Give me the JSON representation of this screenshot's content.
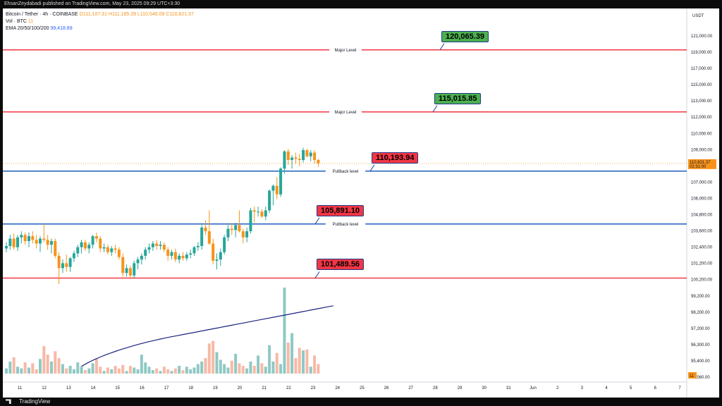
{
  "header": {
    "published": "EhsanZeydabadi published on TradingView.com, May 23, 2025 09:29 UTC+3:30"
  },
  "legend": {
    "symbol": "Bitcoin / Tether · 4h · COINBASE",
    "ohlc": "O111,107.31 H111,185.39 L110,546.09 C110,821.37",
    "vol_label": "Vol · BTC",
    "vol_value": "11",
    "ema_label": "EMA 20/50/100/200",
    "ema_value": "99,418.89"
  },
  "footer": {
    "brand": "TradingView"
  },
  "colors": {
    "bull": "#26a69a",
    "bear": "#f7931a",
    "bull_volume": "#8fc9c4",
    "bear_volume": "#f7b9a6",
    "major_level": "#f23645",
    "pullback_level": "#1e5fbf",
    "ema": "#1a237e"
  },
  "chart_data": {
    "type": "candlestick",
    "currency": "USDT",
    "ylim": [
      94400,
      122700
    ],
    "price_ticks": [
      "121,000.00",
      "119,000.00",
      "117,000.00",
      "115,000.00",
      "113,000.00",
      "112,000.00",
      "110,000.00",
      "109,000.00",
      "108,000.00",
      "107,000.00",
      "106,000.00",
      "104,800.00",
      "103,600.00",
      "102,400.00",
      "101,200.00",
      "100,200.00",
      "99,200.00",
      "98,200.00",
      "97,200.00",
      "96,300.00",
      "95,400.00",
      "94,560.00"
    ],
    "time_ticks": [
      "11",
      "12",
      "13",
      "14",
      "15",
      "16",
      "17",
      "18",
      "19",
      "20",
      "21",
      "22",
      "23",
      "24",
      "25",
      "26",
      "27",
      "28",
      "29",
      "30",
      "31",
      "Jun",
      "2",
      "3",
      "4",
      "5",
      "6",
      "7"
    ],
    "current_price_label": "110,821.37",
    "countdown_label": "02:31:00",
    "volume_label": "11",
    "levels": [
      {
        "price": 120065.39,
        "name": "Major Level",
        "type": "major",
        "callout": "120,065.39",
        "callout_color": "green"
      },
      {
        "price": 115015.85,
        "name": "Major Level",
        "type": "major",
        "callout": "115,015.85",
        "callout_color": "green"
      },
      {
        "price": 110193.94,
        "name": "Pullback level",
        "type": "pullback",
        "callout": "110,193.94",
        "callout_color": "red"
      },
      {
        "price": 105891.1,
        "name": "Pullback level",
        "type": "pullback",
        "callout": "105,891.10",
        "callout_color": "red"
      },
      {
        "price": 101489.56,
        "name": "",
        "type": "major",
        "callout": "101,489.56",
        "callout_color": "red"
      }
    ],
    "candles": [
      {
        "o": 103900,
        "h": 104400,
        "l": 103600,
        "c": 104100
      },
      {
        "o": 104100,
        "h": 105000,
        "l": 103800,
        "c": 104700
      },
      {
        "o": 104700,
        "h": 105100,
        "l": 103800,
        "c": 104000
      },
      {
        "o": 104000,
        "h": 105000,
        "l": 103700,
        "c": 104800
      },
      {
        "o": 104800,
        "h": 105300,
        "l": 104300,
        "c": 105000
      },
      {
        "o": 105000,
        "h": 105200,
        "l": 104200,
        "c": 104500
      },
      {
        "o": 104500,
        "h": 105200,
        "l": 104000,
        "c": 104900
      },
      {
        "o": 104900,
        "h": 105300,
        "l": 104300,
        "c": 104600
      },
      {
        "o": 104600,
        "h": 105000,
        "l": 103900,
        "c": 104300
      },
      {
        "o": 104300,
        "h": 104900,
        "l": 103600,
        "c": 104700
      },
      {
        "o": 104700,
        "h": 105900,
        "l": 104400,
        "c": 104600
      },
      {
        "o": 104600,
        "h": 105000,
        "l": 103800,
        "c": 104200
      },
      {
        "o": 104200,
        "h": 104700,
        "l": 103500,
        "c": 104500
      },
      {
        "o": 104500,
        "h": 104700,
        "l": 103100,
        "c": 103300
      },
      {
        "o": 103300,
        "h": 103600,
        "l": 101000,
        "c": 102300
      },
      {
        "o": 102300,
        "h": 103000,
        "l": 101900,
        "c": 102700
      },
      {
        "o": 102700,
        "h": 103400,
        "l": 102000,
        "c": 102400
      },
      {
        "o": 102400,
        "h": 103200,
        "l": 102000,
        "c": 103100
      },
      {
        "o": 103100,
        "h": 103700,
        "l": 102800,
        "c": 103500
      },
      {
        "o": 103500,
        "h": 104200,
        "l": 103200,
        "c": 104000
      },
      {
        "o": 104000,
        "h": 104600,
        "l": 103500,
        "c": 104400
      },
      {
        "o": 104400,
        "h": 104600,
        "l": 103700,
        "c": 103900
      },
      {
        "o": 103900,
        "h": 104400,
        "l": 103500,
        "c": 104200
      },
      {
        "o": 104200,
        "h": 105000,
        "l": 103900,
        "c": 104900
      },
      {
        "o": 104900,
        "h": 105200,
        "l": 104400,
        "c": 104700
      },
      {
        "o": 104700,
        "h": 104900,
        "l": 103600,
        "c": 103900
      },
      {
        "o": 103900,
        "h": 104300,
        "l": 103600,
        "c": 104000
      },
      {
        "o": 104000,
        "h": 104200,
        "l": 103400,
        "c": 103600
      },
      {
        "o": 103600,
        "h": 104100,
        "l": 103300,
        "c": 103900
      },
      {
        "o": 103900,
        "h": 104200,
        "l": 103500,
        "c": 103800
      },
      {
        "o": 103800,
        "h": 104000,
        "l": 103000,
        "c": 103200
      },
      {
        "o": 103200,
        "h": 103500,
        "l": 101600,
        "c": 101900
      },
      {
        "o": 101900,
        "h": 102600,
        "l": 101600,
        "c": 102300
      },
      {
        "o": 102300,
        "h": 102500,
        "l": 101400,
        "c": 101700
      },
      {
        "o": 101700,
        "h": 102900,
        "l": 101500,
        "c": 102700
      },
      {
        "o": 102700,
        "h": 103200,
        "l": 102200,
        "c": 103000
      },
      {
        "o": 103000,
        "h": 103500,
        "l": 102600,
        "c": 103300
      },
      {
        "o": 103300,
        "h": 104000,
        "l": 103000,
        "c": 103800
      },
      {
        "o": 103800,
        "h": 104300,
        "l": 103500,
        "c": 104000
      },
      {
        "o": 104000,
        "h": 104500,
        "l": 103700,
        "c": 104300
      },
      {
        "o": 104300,
        "h": 104600,
        "l": 103800,
        "c": 104100
      },
      {
        "o": 104100,
        "h": 104500,
        "l": 103800,
        "c": 104200
      },
      {
        "o": 104200,
        "h": 104400,
        "l": 103600,
        "c": 103800
      },
      {
        "o": 103800,
        "h": 104000,
        "l": 102900,
        "c": 103300
      },
      {
        "o": 103300,
        "h": 103800,
        "l": 103000,
        "c": 103600
      },
      {
        "o": 103600,
        "h": 103900,
        "l": 102800,
        "c": 103000
      },
      {
        "o": 103000,
        "h": 103500,
        "l": 102700,
        "c": 103300
      },
      {
        "o": 103300,
        "h": 103600,
        "l": 102900,
        "c": 103100
      },
      {
        "o": 103100,
        "h": 103600,
        "l": 102900,
        "c": 103400
      },
      {
        "o": 103400,
        "h": 103800,
        "l": 103100,
        "c": 103500
      },
      {
        "o": 103500,
        "h": 104100,
        "l": 103300,
        "c": 104000
      },
      {
        "o": 104000,
        "h": 104400,
        "l": 103700,
        "c": 104100
      },
      {
        "o": 104100,
        "h": 105800,
        "l": 103800,
        "c": 105600
      },
      {
        "o": 105600,
        "h": 106200,
        "l": 105000,
        "c": 105300
      },
      {
        "o": 105300,
        "h": 107000,
        "l": 104200,
        "c": 104300
      },
      {
        "o": 104300,
        "h": 104700,
        "l": 102600,
        "c": 102900
      },
      {
        "o": 102900,
        "h": 103500,
        "l": 102200,
        "c": 103000
      },
      {
        "o": 103000,
        "h": 103900,
        "l": 102500,
        "c": 103600
      },
      {
        "o": 103600,
        "h": 105000,
        "l": 103400,
        "c": 104800
      },
      {
        "o": 104800,
        "h": 105800,
        "l": 104500,
        "c": 105500
      },
      {
        "o": 105500,
        "h": 106000,
        "l": 105000,
        "c": 105400
      },
      {
        "o": 105400,
        "h": 106000,
        "l": 104800,
        "c": 105800
      },
      {
        "o": 105800,
        "h": 107000,
        "l": 105200,
        "c": 105300
      },
      {
        "o": 105300,
        "h": 105500,
        "l": 104300,
        "c": 104800
      },
      {
        "o": 104800,
        "h": 105600,
        "l": 104400,
        "c": 105300
      },
      {
        "o": 105300,
        "h": 107200,
        "l": 105100,
        "c": 107000
      },
      {
        "o": 107000,
        "h": 107300,
        "l": 106000,
        "c": 106900
      },
      {
        "o": 106900,
        "h": 107300,
        "l": 106500,
        "c": 106900
      },
      {
        "o": 106900,
        "h": 107100,
        "l": 106400,
        "c": 106500
      },
      {
        "o": 106500,
        "h": 107300,
        "l": 106200,
        "c": 107000
      },
      {
        "o": 107000,
        "h": 108700,
        "l": 106800,
        "c": 108600
      },
      {
        "o": 108600,
        "h": 109100,
        "l": 107400,
        "c": 109000
      },
      {
        "o": 109000,
        "h": 109700,
        "l": 107900,
        "c": 108300
      },
      {
        "o": 108300,
        "h": 110500,
        "l": 108100,
        "c": 110400
      },
      {
        "o": 110400,
        "h": 111900,
        "l": 110000,
        "c": 111800
      },
      {
        "o": 111800,
        "h": 112000,
        "l": 110700,
        "c": 111100
      },
      {
        "o": 111100,
        "h": 111500,
        "l": 110400,
        "c": 111300
      },
      {
        "o": 111300,
        "h": 111700,
        "l": 110800,
        "c": 111200
      },
      {
        "o": 111200,
        "h": 111600,
        "l": 110600,
        "c": 111100
      },
      {
        "o": 111100,
        "h": 112100,
        "l": 110900,
        "c": 111900
      },
      {
        "o": 111900,
        "h": 112000,
        "l": 111300,
        "c": 111400
      },
      {
        "o": 111400,
        "h": 111900,
        "l": 111000,
        "c": 111700
      },
      {
        "o": 111700,
        "h": 111900,
        "l": 110800,
        "c": 111100
      },
      {
        "o": 111107.31,
        "h": 111185.39,
        "l": 110546.09,
        "c": 110821.37
      }
    ],
    "volumes": [
      6,
      14,
      19,
      8,
      6,
      13,
      7,
      12,
      5,
      17,
      32,
      22,
      14,
      26,
      18,
      11,
      6,
      9,
      5,
      13,
      8,
      4,
      6,
      12,
      17,
      8,
      3,
      7,
      5,
      9,
      6,
      10,
      3,
      9,
      7,
      5,
      22,
      13,
      8,
      4,
      6,
      3,
      8,
      5,
      3,
      6,
      9,
      4,
      8,
      5,
      7,
      11,
      14,
      18,
      35,
      38,
      25,
      16,
      11,
      7,
      15,
      23,
      12,
      9,
      6,
      14,
      9,
      21,
      12,
      8,
      33,
      14,
      24,
      11,
      100,
      36,
      47,
      18,
      30,
      27,
      28,
      8,
      21,
      11
    ],
    "ema200": [
      null,
      null,
      null,
      null,
      null,
      null,
      null,
      null,
      null,
      null,
      null,
      null,
      null,
      null,
      null,
      null,
      96000,
      96150,
      96300,
      96420,
      96540,
      96650,
      96760,
      96860,
      96950,
      97040,
      97130,
      97210,
      97290,
      97370,
      97450,
      97520,
      97590,
      97660,
      97720,
      97780,
      97840,
      97900,
      97960,
      98010,
      98060,
      98110,
      98160,
      98210,
      98260,
      98310,
      98360,
      98410,
      98460,
      98510,
      98560,
      98610,
      98660,
      98710,
      98760,
      98810,
      98860,
      98910,
      98960,
      99010,
      99060,
      99110,
      99160,
      99210,
      99260,
      99310,
      99360,
      99410,
      99460,
      99510,
      99560,
      99610,
      99660,
      99710,
      99760,
      99810,
      99860,
      99910,
      99960,
      100010,
      100060,
      100110,
      100160,
      100210
    ]
  }
}
